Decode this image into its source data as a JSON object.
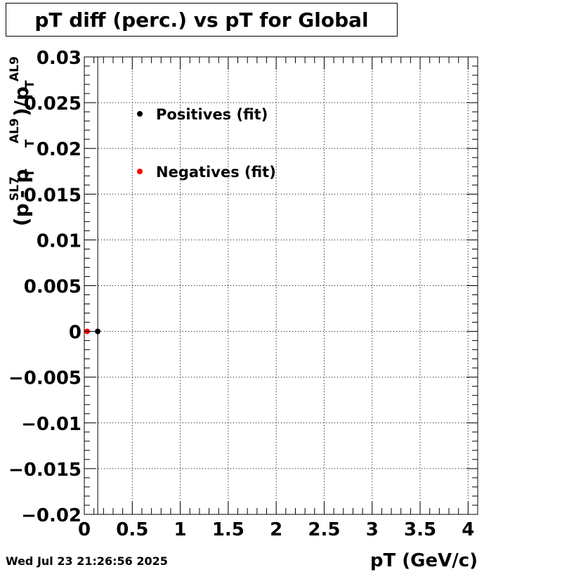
{
  "chart_data": {
    "type": "scatter",
    "title": "pT diff (perc.) vs pT for Global",
    "xlabel": "pT (GeV/c)",
    "ylabel_parts": {
      "open": "(p",
      "sup1": "SL7",
      "sub1": "T",
      "minus": " - p",
      "sup2": "AL9",
      "sub2": "T",
      "close": ")/p",
      "sup3": "AL9",
      "sub3": "T"
    },
    "xlim": [
      0,
      4.1
    ],
    "ylim": [
      -0.02,
      0.03
    ],
    "x_ticks": [
      0,
      0.5,
      1,
      1.5,
      2,
      2.5,
      3,
      3.5,
      4
    ],
    "x_tick_labels": [
      "0",
      "0.5",
      "1",
      "1.5",
      "2",
      "2.5",
      "3",
      "3.5",
      "4"
    ],
    "y_ticks": [
      -0.02,
      -0.015,
      -0.01,
      -0.005,
      0,
      0.005,
      0.01,
      0.015,
      0.02,
      0.025,
      0.03
    ],
    "y_tick_labels": [
      "−0.02",
      "−0.015",
      "−0.01",
      "−0.005",
      "0",
      "0.005",
      "0.01",
      "0.015",
      "0.02",
      "0.025",
      "0.03"
    ],
    "grid": true,
    "legend_position": "top-left",
    "series": [
      {
        "name": "Positives (fit)",
        "color": "#000000",
        "x": [
          0.14
        ],
        "y": [
          0
        ]
      },
      {
        "name": "Negatives (fit)",
        "color": "#ff0000",
        "x": [
          0.03
        ],
        "y": [
          0
        ]
      }
    ],
    "vertical_line_x": 0.14
  },
  "timestamp": "Wed Jul 23 21:26:56 2025"
}
